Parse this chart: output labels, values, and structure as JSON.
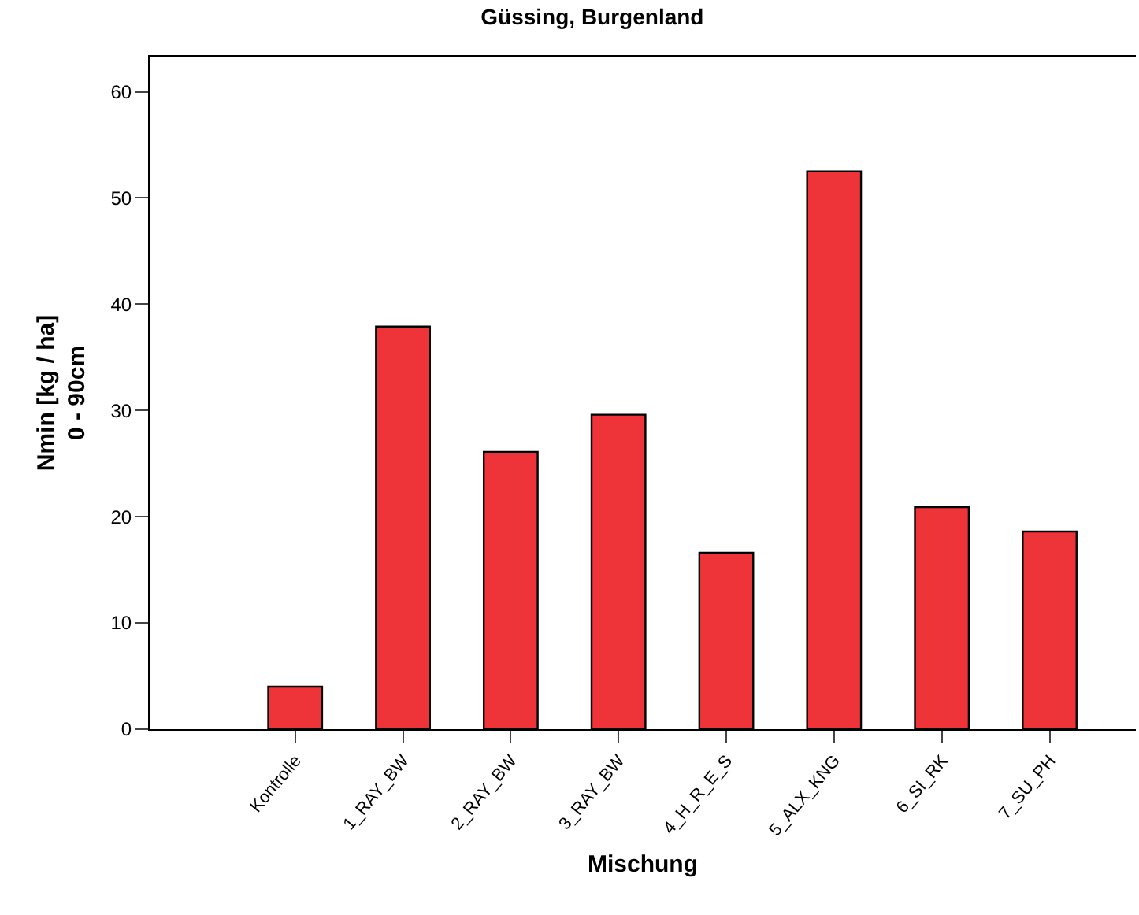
{
  "chart_data": {
    "type": "bar",
    "title": "Güssing, Burgenland",
    "xlabel": "Mischung",
    "ylabel": "Nmin [kg / ha]\n0 - 90cm",
    "categories": [
      "Kontrolle",
      "1_RAY_BW",
      "2_RAY_BW",
      "3_RAY_BW",
      "4_H_R_E_S",
      "5_ALX_KNG",
      "6_SI_RK",
      "7_SU_PH"
    ],
    "values": [
      4.0,
      37.9,
      26.1,
      29.6,
      16.6,
      52.5,
      20.9,
      18.6
    ],
    "color": "#ee3339",
    "ylim": [
      0,
      63.3
    ],
    "yticks": [
      0,
      10,
      20,
      30,
      40,
      50,
      60
    ]
  }
}
